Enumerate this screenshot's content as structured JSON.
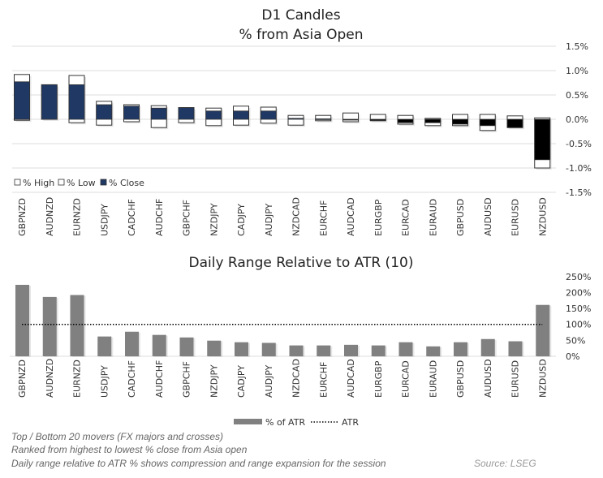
{
  "chart_data": [
    {
      "type": "candlestick",
      "title": "D1 Candles",
      "subtitle": "% from Asia Open",
      "categories": [
        "GBPNZD",
        "AUDNZD",
        "EURNZD",
        "USDJPY",
        "CADCHF",
        "AUDCHF",
        "GBPCHF",
        "NZDJPY",
        "CADJPY",
        "AUDJPY",
        "NZDCAD",
        "EURCHF",
        "AUDCAD",
        "EURGBP",
        "EURCAD",
        "EURAUD",
        "GBPUSD",
        "AUDUSD",
        "EURUSD",
        "NZDUSD"
      ],
      "series": [
        {
          "name": "% High",
          "values": [
            0.92,
            0.71,
            0.9,
            0.37,
            0.3,
            0.28,
            0.24,
            0.23,
            0.27,
            0.25,
            0.08,
            0.08,
            0.13,
            0.1,
            0.08,
            0.02,
            0.1,
            0.1,
            0.07,
            0.03
          ]
        },
        {
          "name": "% Low",
          "values": [
            -0.02,
            0.0,
            -0.07,
            -0.12,
            -0.05,
            -0.17,
            -0.07,
            -0.13,
            -0.12,
            -0.08,
            -0.12,
            -0.03,
            -0.05,
            -0.03,
            -0.1,
            -0.13,
            -0.13,
            -0.23,
            -0.17,
            -1.0
          ]
        },
        {
          "name": "% Close",
          "values": [
            0.77,
            0.71,
            0.71,
            0.3,
            0.27,
            0.23,
            0.24,
            0.17,
            0.17,
            0.17,
            0.02,
            0.01,
            -0.01,
            -0.02,
            -0.07,
            -0.07,
            -0.1,
            -0.13,
            -0.17,
            -0.83
          ]
        }
      ],
      "ylim": [
        -1.5,
        1.5
      ],
      "yticks": [
        "1.5%",
        "1.0%",
        "0.5%",
        "0.0%",
        "-0.5%",
        "-1.0%",
        "-1.5%"
      ],
      "ytick_values": [
        1.5,
        1.0,
        0.5,
        0.0,
        -0.5,
        -1.0,
        -1.5
      ],
      "grid": true,
      "legend_placement": "bottom-left",
      "colors": {
        "positive_close": "#1f3864",
        "negative_close": "#000000",
        "range": "#ffffff"
      }
    },
    {
      "type": "bar",
      "title": "Daily Range Relative to ATR (10)",
      "categories": [
        "GBPNZD",
        "AUDNZD",
        "EURNZD",
        "USDJPY",
        "CADCHF",
        "AUDCHF",
        "GBPCHF",
        "NZDJPY",
        "CADJPY",
        "AUDJPY",
        "NZDCAD",
        "EURCHF",
        "AUDCAD",
        "EURGBP",
        "EURCAD",
        "EURAUD",
        "GBPUSD",
        "AUDUSD",
        "EURUSD",
        "NZDUSD"
      ],
      "series": [
        {
          "name": "% of ATR",
          "values": [
            224,
            186,
            192,
            62,
            77,
            67,
            59,
            49,
            44,
            42,
            34,
            34,
            36,
            34,
            44,
            31,
            44,
            54,
            47,
            161
          ]
        },
        {
          "name": "ATR",
          "values": [
            100,
            100,
            100,
            100,
            100,
            100,
            100,
            100,
            100,
            100,
            100,
            100,
            100,
            100,
            100,
            100,
            100,
            100,
            100,
            100
          ]
        }
      ],
      "ylim": [
        0,
        250
      ],
      "yticks": [
        "250%",
        "200%",
        "150%",
        "100%",
        "50%",
        "0%"
      ],
      "ytick_values": [
        250,
        200,
        150,
        100,
        50,
        0
      ],
      "grid": false,
      "legend_placement": "bottom",
      "colors": {
        "bar": "#808080",
        "atr_line": "#000000"
      }
    }
  ],
  "notes": [
    "Top / Bottom 20 movers (FX majors and crosses)",
    "Ranked from highest to lowest % close from Asia open",
    "Daily range relative to ATR % shows compression and range expansion for the session"
  ],
  "source": "Source: LSEG"
}
